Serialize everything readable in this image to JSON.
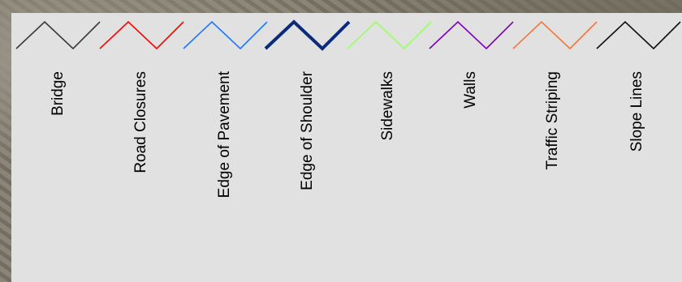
{
  "legend": {
    "items": [
      {
        "label": "Bridge",
        "color": "#3a3a3a",
        "weight": "normal"
      },
      {
        "label": "Road Closures",
        "color": "#ff0000",
        "weight": "normal"
      },
      {
        "label": "Edge of Pavement",
        "color": "#1e78ff",
        "weight": "normal"
      },
      {
        "label": "Edge of Shoulder",
        "color": "#0a2a7a",
        "weight": "bold"
      },
      {
        "label": "Sidewalks",
        "color": "#99ff66",
        "weight": "normal"
      },
      {
        "label": "Walls",
        "color": "#8000c0",
        "weight": "normal"
      },
      {
        "label": "Traffic Striping",
        "color": "#f07838",
        "weight": "normal"
      },
      {
        "label": "Slope Lines",
        "color": "#101010",
        "weight": "normal"
      }
    ]
  }
}
